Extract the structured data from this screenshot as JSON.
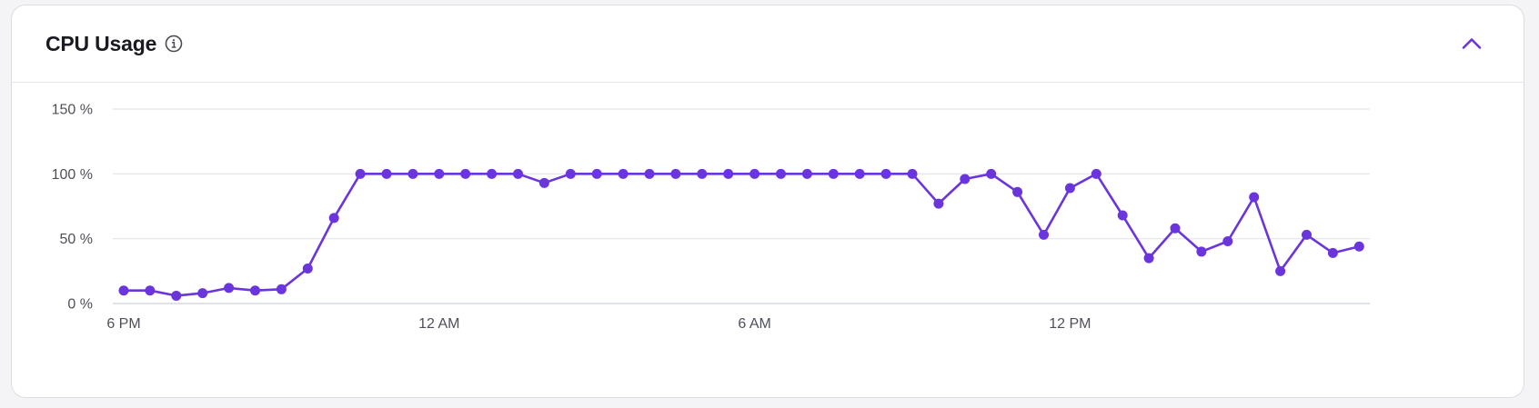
{
  "card": {
    "title": "CPU Usage"
  },
  "icons": {
    "info": "info-icon",
    "collapse": "chevron-up-icon"
  },
  "colors": {
    "accent": "#6b35dd",
    "grid": "#e4e4ea",
    "axis_label": "#4f4f5c"
  },
  "chart_data": {
    "type": "line",
    "title": "",
    "xlabel": "",
    "ylabel": "",
    "ylim": [
      0,
      150
    ],
    "yticks": [
      {
        "value": 0,
        "label": "0 %"
      },
      {
        "value": 50,
        "label": "50 %"
      },
      {
        "value": 100,
        "label": "100 %"
      },
      {
        "value": 150,
        "label": "150 %"
      }
    ],
    "xticks": [
      {
        "index": 0,
        "label": "6 PM"
      },
      {
        "index": 12,
        "label": "12 AM"
      },
      {
        "index": 24,
        "label": "6 AM"
      },
      {
        "index": 36,
        "label": "12 PM"
      }
    ],
    "grid": true,
    "series": [
      {
        "values": [
          10,
          10,
          6,
          8,
          12,
          10,
          11,
          27,
          66,
          100,
          100,
          100,
          100,
          100,
          100,
          100,
          93,
          100,
          100,
          100,
          100,
          100,
          100,
          100,
          100,
          100,
          100,
          100,
          100,
          100,
          100,
          77,
          96,
          100,
          86,
          53,
          89,
          100,
          68,
          35,
          58,
          40,
          48,
          82,
          25,
          53,
          39,
          44
        ]
      }
    ]
  }
}
